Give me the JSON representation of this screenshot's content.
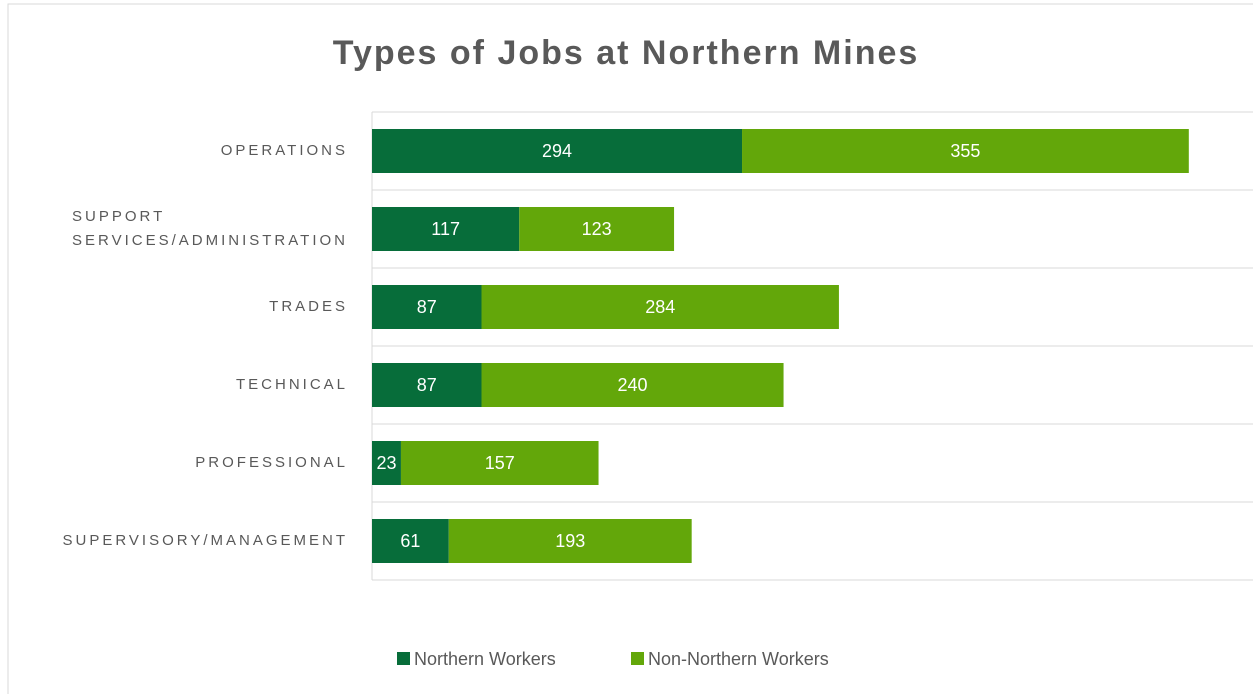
{
  "chart_data": {
    "type": "stacked_bar_horizontal",
    "title": "Types of Jobs at Northern Mines",
    "categories": [
      "OPERATIONS",
      "SUPPORT SERVICES/ADMINISTRATION",
      "TRADES",
      "TECHNICAL",
      "PROFESSIONAL",
      "SUPERVISORY/MANAGEMENT"
    ],
    "series": [
      {
        "name": "Northern Workers",
        "color": "#076d3a",
        "values": [
          294,
          117,
          87,
          87,
          23,
          61
        ]
      },
      {
        "name": "Non-Northern Workers",
        "color": "#63a70a",
        "values": [
          355,
          123,
          284,
          240,
          157,
          193
        ]
      }
    ],
    "xlim": [
      0,
      700
    ],
    "legend": "bottom"
  }
}
